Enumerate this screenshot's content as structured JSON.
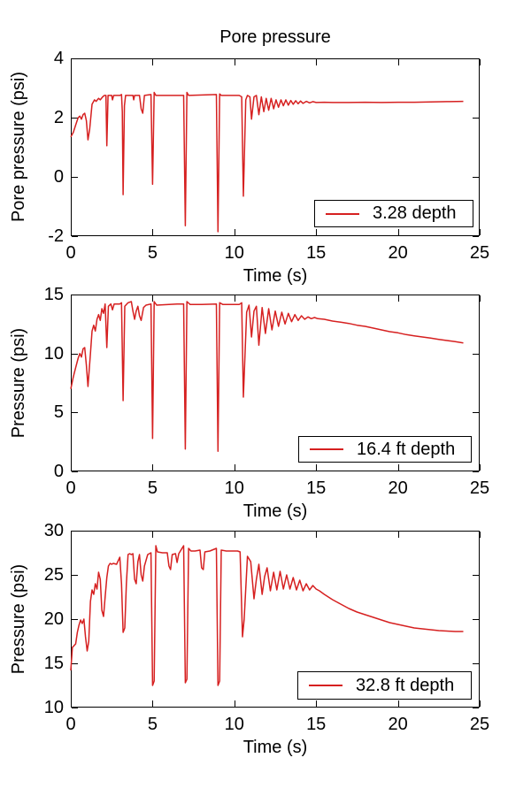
{
  "page": {
    "background": "#ffffff",
    "text_color": "#000000"
  },
  "chart_data": [
    {
      "type": "line",
      "title": "Pore pressure",
      "xlabel": "Time (s)",
      "ylabel": "Pore pressure (psi)",
      "legend": "3.28 depth",
      "legend_position": "lower right",
      "line_color": "#d62020",
      "grid": false,
      "xlim": [
        0,
        25
      ],
      "ylim": [
        -2,
        4
      ],
      "xticks": [
        0,
        5,
        10,
        15,
        20,
        25
      ],
      "yticks": [
        -2,
        0,
        2,
        4
      ],
      "points": [
        [
          0,
          1.35
        ],
        [
          0.15,
          1.5
        ],
        [
          0.3,
          1.75
        ],
        [
          0.45,
          2.0
        ],
        [
          0.55,
          2.05
        ],
        [
          0.65,
          1.95
        ],
        [
          0.75,
          2.1
        ],
        [
          0.85,
          2.15
        ],
        [
          0.95,
          1.9
        ],
        [
          1.05,
          1.25
        ],
        [
          1.15,
          1.6
        ],
        [
          1.3,
          2.45
        ],
        [
          1.45,
          2.6
        ],
        [
          1.55,
          2.55
        ],
        [
          1.7,
          2.65
        ],
        [
          1.8,
          2.6
        ],
        [
          1.95,
          2.7
        ],
        [
          2.05,
          2.75
        ],
        [
          2.15,
          2.75
        ],
        [
          2.2,
          1.05
        ],
        [
          2.28,
          2.75
        ],
        [
          2.5,
          2.75
        ],
        [
          2.55,
          2.6
        ],
        [
          2.62,
          2.75
        ],
        [
          3.0,
          2.75
        ],
        [
          3.1,
          2.78
        ],
        [
          3.15,
          2.2
        ],
        [
          3.2,
          -0.6
        ],
        [
          3.28,
          2.4
        ],
        [
          3.35,
          2.75
        ],
        [
          3.8,
          2.75
        ],
        [
          3.85,
          2.6
        ],
        [
          3.9,
          2.75
        ],
        [
          4.2,
          2.75
        ],
        [
          4.3,
          2.3
        ],
        [
          4.4,
          2.15
        ],
        [
          4.5,
          2.75
        ],
        [
          4.9,
          2.78
        ],
        [
          5.0,
          -0.25
        ],
        [
          5.1,
          2.85
        ],
        [
          5.2,
          2.75
        ],
        [
          6.9,
          2.75
        ],
        [
          7.0,
          -1.65
        ],
        [
          7.1,
          2.85
        ],
        [
          7.2,
          2.75
        ],
        [
          8.9,
          2.78
        ],
        [
          9.0,
          -1.85
        ],
        [
          9.1,
          2.8
        ],
        [
          9.2,
          2.75
        ],
        [
          10.3,
          2.75
        ],
        [
          10.45,
          2.7
        ],
        [
          10.55,
          -0.65
        ],
        [
          10.7,
          2.6
        ],
        [
          10.8,
          2.75
        ],
        [
          10.95,
          2.7
        ],
        [
          11.05,
          1.95
        ],
        [
          11.2,
          2.7
        ],
        [
          11.35,
          2.75
        ],
        [
          11.5,
          2.1
        ],
        [
          11.65,
          2.7
        ],
        [
          11.8,
          2.2
        ],
        [
          11.95,
          2.65
        ],
        [
          12.1,
          2.25
        ],
        [
          12.25,
          2.65
        ],
        [
          12.4,
          2.3
        ],
        [
          12.55,
          2.6
        ],
        [
          12.7,
          2.35
        ],
        [
          12.85,
          2.6
        ],
        [
          13.0,
          2.4
        ],
        [
          13.15,
          2.6
        ],
        [
          13.3,
          2.42
        ],
        [
          13.45,
          2.58
        ],
        [
          13.6,
          2.45
        ],
        [
          13.75,
          2.57
        ],
        [
          13.9,
          2.47
        ],
        [
          14.05,
          2.56
        ],
        [
          14.2,
          2.48
        ],
        [
          14.4,
          2.55
        ],
        [
          14.6,
          2.5
        ],
        [
          14.8,
          2.54
        ],
        [
          15.0,
          2.51
        ],
        [
          15.5,
          2.52
        ],
        [
          16.0,
          2.51
        ],
        [
          17.0,
          2.51
        ],
        [
          18.0,
          2.52
        ],
        [
          19.0,
          2.51
        ],
        [
          20.0,
          2.52
        ],
        [
          21.0,
          2.52
        ],
        [
          22.0,
          2.53
        ],
        [
          23.0,
          2.54
        ],
        [
          24.0,
          2.55
        ]
      ]
    },
    {
      "type": "line",
      "title": "",
      "xlabel": "Time (s)",
      "ylabel": "Pressure (psi)",
      "legend": "16.4 ft depth",
      "legend_position": "lower right",
      "line_color": "#d62020",
      "grid": false,
      "xlim": [
        0,
        25
      ],
      "ylim": [
        0,
        15
      ],
      "xticks": [
        0,
        5,
        10,
        15,
        20,
        25
      ],
      "yticks": [
        0,
        5,
        10,
        15
      ],
      "points": [
        [
          0,
          7.0
        ],
        [
          0.15,
          8.0
        ],
        [
          0.3,
          8.8
        ],
        [
          0.45,
          9.6
        ],
        [
          0.55,
          10.0
        ],
        [
          0.65,
          9.7
        ],
        [
          0.75,
          10.4
        ],
        [
          0.85,
          10.5
        ],
        [
          0.95,
          9.0
        ],
        [
          1.05,
          7.2
        ],
        [
          1.2,
          10.0
        ],
        [
          1.3,
          11.9
        ],
        [
          1.4,
          12.4
        ],
        [
          1.5,
          11.9
        ],
        [
          1.6,
          12.9
        ],
        [
          1.7,
          13.3
        ],
        [
          1.8,
          12.8
        ],
        [
          1.9,
          13.8
        ],
        [
          2.0,
          13.4
        ],
        [
          2.1,
          14.2
        ],
        [
          2.2,
          10.5
        ],
        [
          2.3,
          14.0
        ],
        [
          2.45,
          14.2
        ],
        [
          2.55,
          13.7
        ],
        [
          2.65,
          14.2
        ],
        [
          3.0,
          14.2
        ],
        [
          3.1,
          14.3
        ],
        [
          3.2,
          6.0
        ],
        [
          3.3,
          14.0
        ],
        [
          3.5,
          14.3
        ],
        [
          3.7,
          14.4
        ],
        [
          3.8,
          13.6
        ],
        [
          3.9,
          12.9
        ],
        [
          4.0,
          13.6
        ],
        [
          4.1,
          14.0
        ],
        [
          4.2,
          13.2
        ],
        [
          4.3,
          12.8
        ],
        [
          4.45,
          13.9
        ],
        [
          4.6,
          14.1
        ],
        [
          4.9,
          14.2
        ],
        [
          5.0,
          2.8
        ],
        [
          5.1,
          14.4
        ],
        [
          5.25,
          14.1
        ],
        [
          6.0,
          14.15
        ],
        [
          6.5,
          14.2
        ],
        [
          6.9,
          14.2
        ],
        [
          7.0,
          1.9
        ],
        [
          7.1,
          14.4
        ],
        [
          7.3,
          14.15
        ],
        [
          8.0,
          14.15
        ],
        [
          8.9,
          14.2
        ],
        [
          9.0,
          1.7
        ],
        [
          9.1,
          14.3
        ],
        [
          9.3,
          14.15
        ],
        [
          10.3,
          14.15
        ],
        [
          10.45,
          14.3
        ],
        [
          10.55,
          6.3
        ],
        [
          10.75,
          13.5
        ],
        [
          10.9,
          14.1
        ],
        [
          11.05,
          11.4
        ],
        [
          11.2,
          13.6
        ],
        [
          11.35,
          14.0
        ],
        [
          11.5,
          10.7
        ],
        [
          11.7,
          13.9
        ],
        [
          11.9,
          11.7
        ],
        [
          12.1,
          13.8
        ],
        [
          12.3,
          12.0
        ],
        [
          12.5,
          13.6
        ],
        [
          12.7,
          12.3
        ],
        [
          12.9,
          13.5
        ],
        [
          13.1,
          12.5
        ],
        [
          13.3,
          13.4
        ],
        [
          13.5,
          12.7
        ],
        [
          13.7,
          13.3
        ],
        [
          13.9,
          12.8
        ],
        [
          14.1,
          13.2
        ],
        [
          14.3,
          12.9
        ],
        [
          14.5,
          13.1
        ],
        [
          14.7,
          12.95
        ],
        [
          14.9,
          13.05
        ],
        [
          15.1,
          12.95
        ],
        [
          15.5,
          12.9
        ],
        [
          16.0,
          12.75
        ],
        [
          16.5,
          12.65
        ],
        [
          17.0,
          12.55
        ],
        [
          17.5,
          12.4
        ],
        [
          18.0,
          12.3
        ],
        [
          18.5,
          12.15
        ],
        [
          19.0,
          12.0
        ],
        [
          19.5,
          11.85
        ],
        [
          20.0,
          11.75
        ],
        [
          20.5,
          11.6
        ],
        [
          21.0,
          11.5
        ],
        [
          21.5,
          11.4
        ],
        [
          22.0,
          11.3
        ],
        [
          22.5,
          11.2
        ],
        [
          23.0,
          11.1
        ],
        [
          23.5,
          11.0
        ],
        [
          24.0,
          10.9
        ]
      ]
    },
    {
      "type": "line",
      "title": "",
      "xlabel": "Time (s)",
      "ylabel": "Pressure (psi)",
      "legend": "32.8 ft depth",
      "legend_position": "lower right",
      "line_color": "#d62020",
      "grid": false,
      "xlim": [
        0,
        25
      ],
      "ylim": [
        10,
        30
      ],
      "xticks": [
        0,
        5,
        10,
        15,
        20,
        25
      ],
      "yticks": [
        10,
        15,
        20,
        25,
        30
      ],
      "points": [
        [
          0,
          14.2
        ],
        [
          0.1,
          16.8
        ],
        [
          0.2,
          17.0
        ],
        [
          0.3,
          17.2
        ],
        [
          0.4,
          18.5
        ],
        [
          0.5,
          19.3
        ],
        [
          0.6,
          19.9
        ],
        [
          0.7,
          19.5
        ],
        [
          0.8,
          20.0
        ],
        [
          0.9,
          18.0
        ],
        [
          1.0,
          16.4
        ],
        [
          1.1,
          17.5
        ],
        [
          1.2,
          22.0
        ],
        [
          1.3,
          23.3
        ],
        [
          1.4,
          22.8
        ],
        [
          1.5,
          24.0
        ],
        [
          1.6,
          23.4
        ],
        [
          1.7,
          25.3
        ],
        [
          1.8,
          24.5
        ],
        [
          1.9,
          21.0
        ],
        [
          2.0,
          20.3
        ],
        [
          2.1,
          22.5
        ],
        [
          2.2,
          24.7
        ],
        [
          2.3,
          26.0
        ],
        [
          2.4,
          26.3
        ],
        [
          2.5,
          26.2
        ],
        [
          2.6,
          26.3
        ],
        [
          2.8,
          26.2
        ],
        [
          3.0,
          27.0
        ],
        [
          3.1,
          24.0
        ],
        [
          3.2,
          18.5
        ],
        [
          3.3,
          19.0
        ],
        [
          3.4,
          24.0
        ],
        [
          3.5,
          27.3
        ],
        [
          3.6,
          27.4
        ],
        [
          3.7,
          27.3
        ],
        [
          3.8,
          27.4
        ],
        [
          3.9,
          24.5
        ],
        [
          4.0,
          24.0
        ],
        [
          4.1,
          26.5
        ],
        [
          4.2,
          27.3
        ],
        [
          4.3,
          25.0
        ],
        [
          4.4,
          24.3
        ],
        [
          4.5,
          26.0
        ],
        [
          4.7,
          27.3
        ],
        [
          4.9,
          27.5
        ],
        [
          5.0,
          12.5
        ],
        [
          5.1,
          13.0
        ],
        [
          5.2,
          28.3
        ],
        [
          5.3,
          27.6
        ],
        [
          5.6,
          27.5
        ],
        [
          5.9,
          27.5
        ],
        [
          6.0,
          26.0
        ],
        [
          6.1,
          25.6
        ],
        [
          6.2,
          27.3
        ],
        [
          6.4,
          27.4
        ],
        [
          6.5,
          26.4
        ],
        [
          6.6,
          27.4
        ],
        [
          6.9,
          28.3
        ],
        [
          7.0,
          12.8
        ],
        [
          7.1,
          13.2
        ],
        [
          7.2,
          28.0
        ],
        [
          7.35,
          27.7
        ],
        [
          7.6,
          27.7
        ],
        [
          7.9,
          27.8
        ],
        [
          8.0,
          25.8
        ],
        [
          8.1,
          25.6
        ],
        [
          8.2,
          27.6
        ],
        [
          8.5,
          27.7
        ],
        [
          8.9,
          28.0
        ],
        [
          9.0,
          12.5
        ],
        [
          9.1,
          13.0
        ],
        [
          9.2,
          27.8
        ],
        [
          9.5,
          27.7
        ],
        [
          10.2,
          27.7
        ],
        [
          10.35,
          27.6
        ],
        [
          10.5,
          18.0
        ],
        [
          10.6,
          20.0
        ],
        [
          10.8,
          27.1
        ],
        [
          11.0,
          26.5
        ],
        [
          11.2,
          22.3
        ],
        [
          11.35,
          24.5
        ],
        [
          11.5,
          26.2
        ],
        [
          11.7,
          22.8
        ],
        [
          11.85,
          24.8
        ],
        [
          12.0,
          25.8
        ],
        [
          12.2,
          23.2
        ],
        [
          12.4,
          25.3
        ],
        [
          12.6,
          23.3
        ],
        [
          12.8,
          25.4
        ],
        [
          13.0,
          23.4
        ],
        [
          13.2,
          25.0
        ],
        [
          13.4,
          23.4
        ],
        [
          13.6,
          24.7
        ],
        [
          13.8,
          23.3
        ],
        [
          14.0,
          24.4
        ],
        [
          14.2,
          23.2
        ],
        [
          14.4,
          24.0
        ],
        [
          14.6,
          23.3
        ],
        [
          14.8,
          23.8
        ],
        [
          15.0,
          23.4
        ],
        [
          15.2,
          23.2
        ],
        [
          15.5,
          22.8
        ],
        [
          16.0,
          22.2
        ],
        [
          16.5,
          21.7
        ],
        [
          17.0,
          21.2
        ],
        [
          17.5,
          20.8
        ],
        [
          18.0,
          20.5
        ],
        [
          18.5,
          20.2
        ],
        [
          19.0,
          19.9
        ],
        [
          19.5,
          19.6
        ],
        [
          20.0,
          19.4
        ],
        [
          20.5,
          19.2
        ],
        [
          21.0,
          19.0
        ],
        [
          21.5,
          18.9
        ],
        [
          22.0,
          18.8
        ],
        [
          22.5,
          18.7
        ],
        [
          23.0,
          18.65
        ],
        [
          23.5,
          18.6
        ],
        [
          24.0,
          18.6
        ]
      ]
    }
  ]
}
